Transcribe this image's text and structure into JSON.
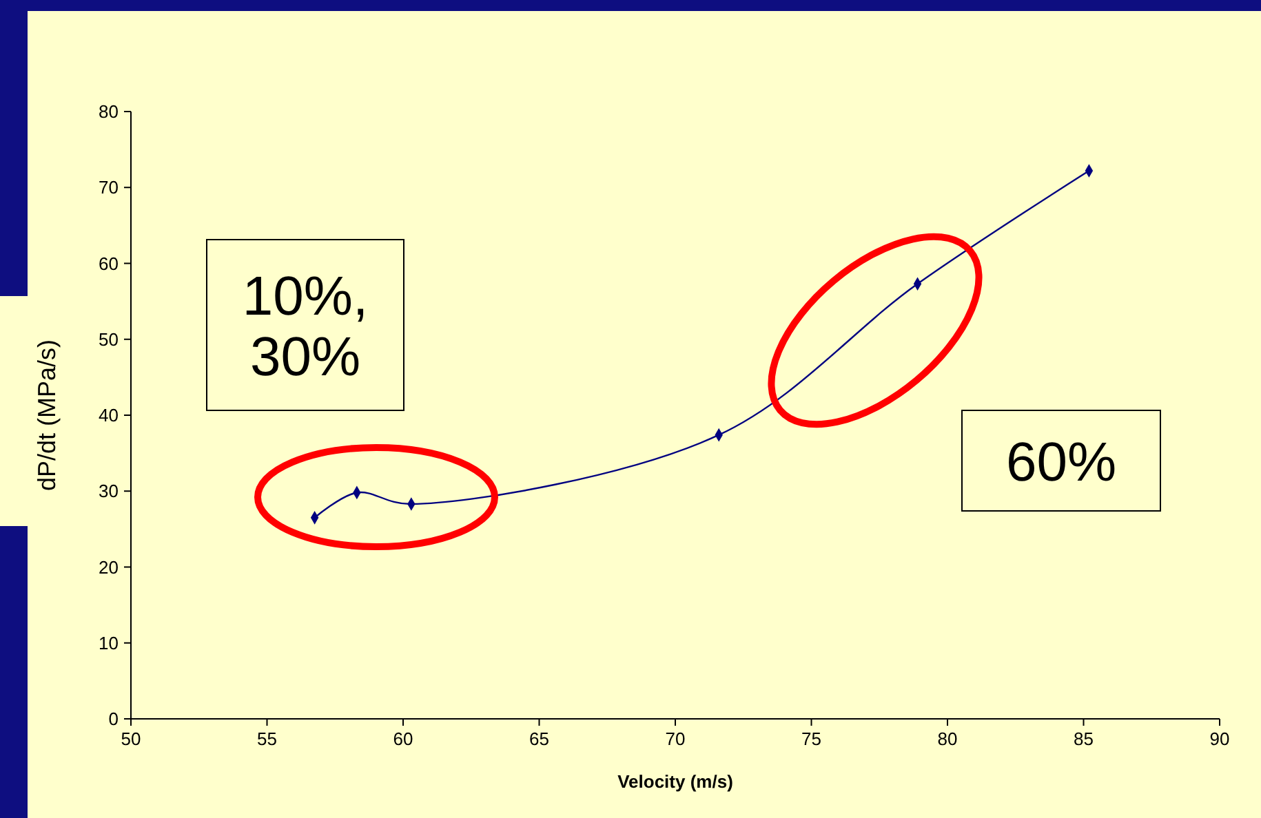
{
  "chart_data": {
    "type": "line",
    "xlabel": "Velocity (m/s)",
    "ylabel": "dP/dt (MPa/s)",
    "x": [
      56.75,
      58.3,
      60.3,
      71.6,
      78.9,
      85.2
    ],
    "series": [
      {
        "color": "#000080",
        "values": [
          26.5,
          29.8,
          28.3,
          37.4,
          57.3,
          72.2
        ]
      }
    ],
    "xlim": [
      50,
      90
    ],
    "xticks": [
      50,
      55,
      60,
      65,
      70,
      75,
      80,
      85,
      90
    ],
    "ylim": [
      0,
      80
    ],
    "yticks": [
      0,
      10,
      20,
      30,
      40,
      50,
      60,
      70,
      80
    ],
    "grid": false,
    "marker": "diamond",
    "line_style": "solid",
    "annotations": [
      "10%,\n30%",
      "60%"
    ]
  }
}
